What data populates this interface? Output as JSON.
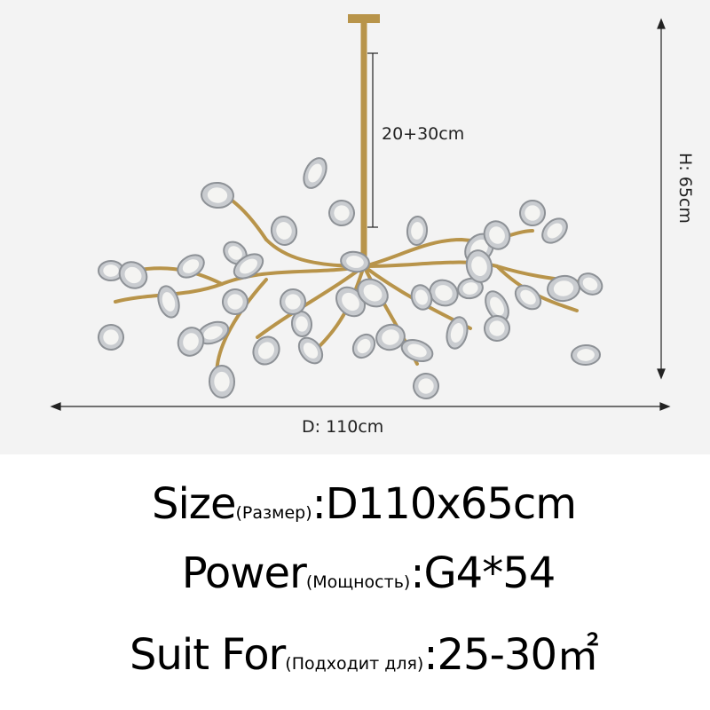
{
  "dimensions": {
    "drop_label": "20+30cm",
    "height_label": "H: 65cm",
    "diameter_label": "D: 110cm"
  },
  "specs": {
    "size": {
      "label": "Size",
      "label_ru": "(Размер)",
      "value": ":D110x65cm"
    },
    "power": {
      "label": "Power",
      "label_ru": "(Мощность)",
      "value": ":G4*54"
    },
    "suit": {
      "label": "Suit For",
      "label_ru": "(Подходит для)",
      "value": ":25-30㎡"
    }
  },
  "colors": {
    "photo_background": "#f3f3f3",
    "brass": "#b8944a"
  }
}
